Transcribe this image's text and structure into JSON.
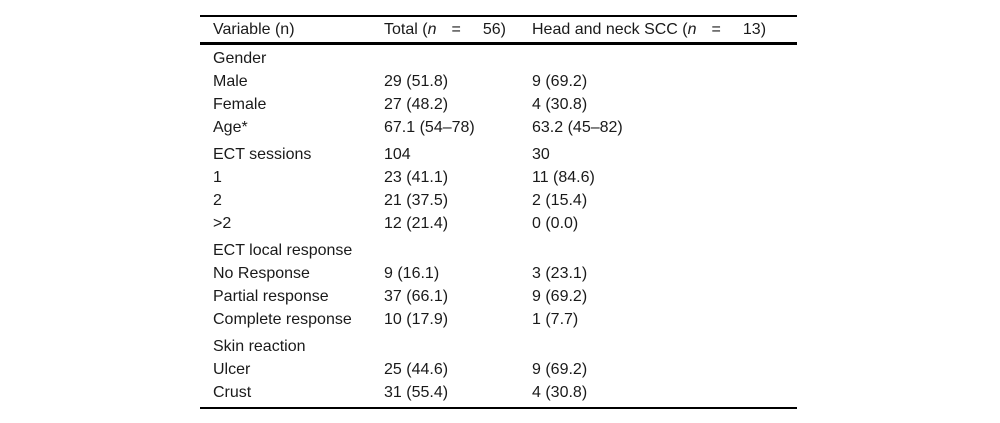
{
  "colors": {
    "text": "#1a1a1a",
    "rule": "#000000",
    "background": "#ffffff"
  },
  "table": {
    "header": {
      "col1": "Variable (n)",
      "col2": {
        "prefix": "Total (",
        "nvar": "n",
        "eq": "=",
        "num": "56)"
      },
      "col3": {
        "prefix": "Head and neck SCC (",
        "nvar": "n",
        "eq": "=",
        "num": "13)"
      }
    },
    "rows": [
      {
        "label": "Gender",
        "total": "",
        "hn": ""
      },
      {
        "label": "Male",
        "total": "29 (51.8)",
        "hn": "9 (69.2)"
      },
      {
        "label": "Female",
        "total": "27 (48.2)",
        "hn": "4 (30.8)"
      },
      {
        "label": "Age*",
        "total": "67.1 (54–78)",
        "hn": "63.2 (45–82)"
      },
      {
        "label": "ECT sessions",
        "total": "104",
        "hn": "30",
        "spacer": true
      },
      {
        "label": "1",
        "total": "23 (41.1)",
        "hn": "11 (84.6)"
      },
      {
        "label": "2",
        "total": "21 (37.5)",
        "hn": "2 (15.4)"
      },
      {
        "label": ">2",
        "total": "12 (21.4)",
        "hn": "0 (0.0)"
      },
      {
        "label": "ECT local response",
        "total": "",
        "hn": "",
        "spacer": true
      },
      {
        "label": "No Response",
        "total": "9 (16.1)",
        "hn": "3 (23.1)"
      },
      {
        "label": "Partial response",
        "total": "37 (66.1)",
        "hn": "9 (69.2)"
      },
      {
        "label": "Complete response",
        "total": "10 (17.9)",
        "hn": "1 (7.7)"
      },
      {
        "label": "Skin reaction",
        "total": "",
        "hn": "",
        "spacer": true
      },
      {
        "label": "Ulcer",
        "total": "25 (44.6)",
        "hn": "9 (69.2)"
      },
      {
        "label": "Crust",
        "total": "31 (55.4)",
        "hn": "4 (30.8)"
      }
    ]
  }
}
